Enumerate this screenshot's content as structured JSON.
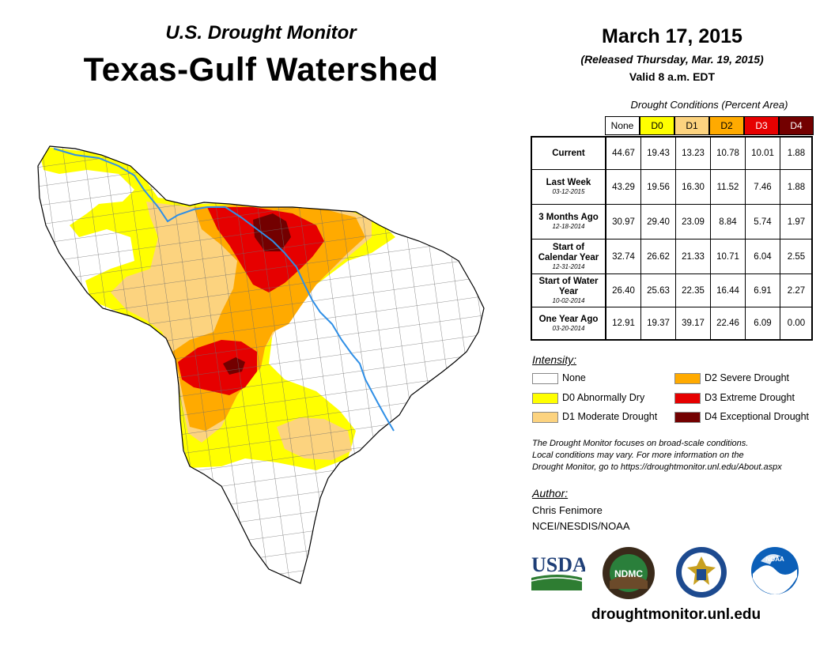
{
  "header": {
    "subtitle": "U.S. Drought Monitor",
    "title": "Texas-Gulf Watershed",
    "date": "March 17, 2015",
    "released": "(Released Thursday, Mar. 19, 2015)",
    "valid": "Valid 8 a.m. EDT"
  },
  "conditions_table": {
    "title": "Drought Conditions (Percent Area)",
    "columns": [
      "None",
      "D0",
      "D1",
      "D2",
      "D3",
      "D4"
    ],
    "column_colors": [
      "#ffffff",
      "#ffff00",
      "#fcd37f",
      "#ffaa00",
      "#e60000",
      "#730000"
    ],
    "rows": [
      {
        "label": "Current",
        "sublabel": "",
        "values": [
          "44.67",
          "19.43",
          "13.23",
          "10.78",
          "10.01",
          "1.88"
        ]
      },
      {
        "label": "Last Week",
        "sublabel": "03-12-2015",
        "values": [
          "43.29",
          "19.56",
          "16.30",
          "11.52",
          "7.46",
          "1.88"
        ]
      },
      {
        "label": "3 Months Ago",
        "sublabel": "12-18-2014",
        "values": [
          "30.97",
          "29.40",
          "23.09",
          "8.84",
          "5.74",
          "1.97"
        ]
      },
      {
        "label": "Start of Calendar Year",
        "sublabel": "12-31-2014",
        "values": [
          "32.74",
          "26.62",
          "21.33",
          "10.71",
          "6.04",
          "2.55"
        ]
      },
      {
        "label": "Start of Water Year",
        "sublabel": "10-02-2014",
        "values": [
          "26.40",
          "25.63",
          "22.35",
          "16.44",
          "6.91",
          "2.27"
        ]
      },
      {
        "label": "One Year Ago",
        "sublabel": "03-20-2014",
        "values": [
          "12.91",
          "19.37",
          "39.17",
          "22.46",
          "6.09",
          "0.00"
        ]
      }
    ]
  },
  "legend": {
    "title": "Intensity:",
    "items": [
      {
        "label": "None",
        "color": "#ffffff"
      },
      {
        "label": "D0 Abnormally Dry",
        "color": "#ffff00"
      },
      {
        "label": "D1 Moderate Drought",
        "color": "#fcd37f"
      },
      {
        "label": "D2 Severe Drought",
        "color": "#ffaa00"
      },
      {
        "label": "D3 Extreme Drought",
        "color": "#e60000"
      },
      {
        "label": "D4 Exceptional Drought",
        "color": "#730000"
      }
    ]
  },
  "disclaimer": {
    "line1": "The Drought Monitor focuses on broad-scale conditions.",
    "line2": "Local conditions may vary. For more information on the",
    "line3": "Drought Monitor, go to https://droughtmonitor.unl.edu/About.aspx"
  },
  "author": {
    "title": "Author:",
    "name": "Chris Fenimore",
    "org": "NCEI/NESDIS/NOAA"
  },
  "logos": {
    "usda": "USDA",
    "ndmc": "NDMC",
    "noaa": "NOAA"
  },
  "footer_url": "droughtmonitor.unl.edu",
  "map_colors": {
    "none": "#ffffff",
    "d0": "#ffff00",
    "d1": "#fcd37f",
    "d2": "#ffaa00",
    "d3": "#e60000",
    "d4": "#730000",
    "river": "#2f8fe6",
    "county": "#6e6e6e"
  }
}
